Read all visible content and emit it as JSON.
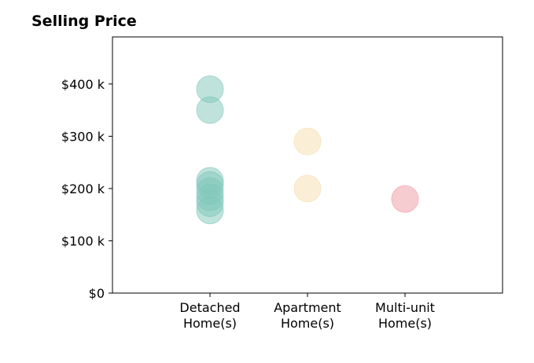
{
  "chart_data": {
    "type": "scatter",
    "title": "Selling Price",
    "xlabel": "",
    "ylabel": "",
    "categories": [
      [
        "Detached",
        "Home(s)"
      ],
      [
        "Apartment",
        "Home(s)"
      ],
      [
        "Multi-unit",
        "Home(s)"
      ]
    ],
    "xlim": [
      -1,
      3
    ],
    "ylim": [
      0,
      490
    ],
    "y_ticks": [
      0,
      100,
      200,
      300,
      400
    ],
    "y_tick_labels": [
      "$0",
      "$100 k",
      "$200 k",
      "$300 k",
      "$400 k"
    ],
    "grid": false,
    "series": [
      {
        "category_index": 0,
        "color": "#7fc7b9",
        "values": [
          390,
          350,
          215,
          207,
          195,
          183,
          172,
          158
        ]
      },
      {
        "category_index": 1,
        "color": "#f5deb0",
        "values": [
          290,
          200
        ]
      },
      {
        "category_index": 2,
        "color": "#f09aa1",
        "values": [
          180
        ]
      }
    ]
  }
}
